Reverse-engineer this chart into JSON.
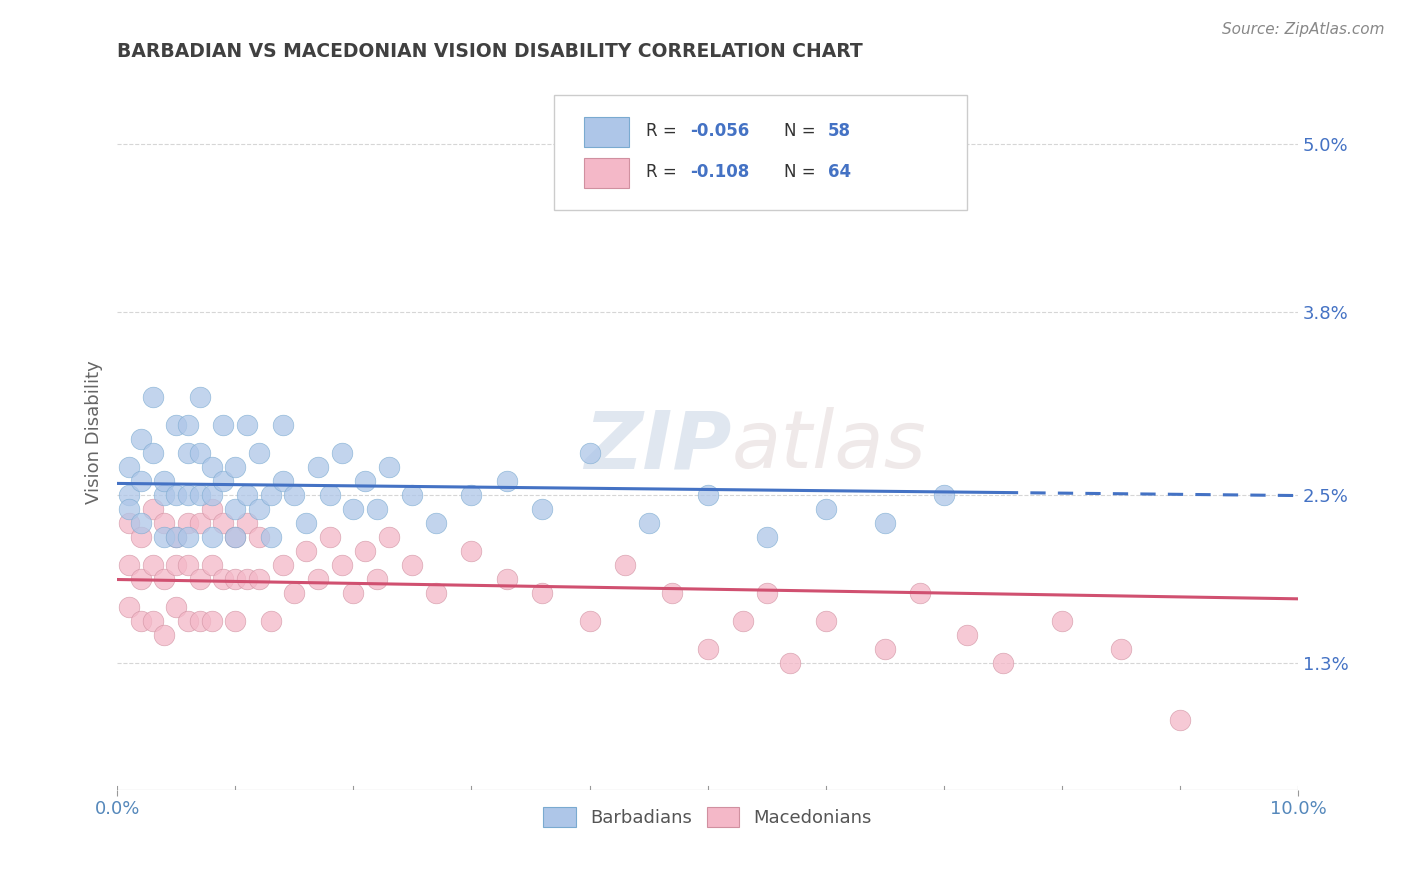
{
  "title": "BARBADIAN VS MACEDONIAN VISION DISABILITY CORRELATION CHART",
  "source": "Source: ZipAtlas.com",
  "ylabel": "Vision Disability",
  "x_min": 0.0,
  "x_max": 0.1,
  "y_min": 0.004,
  "y_max": 0.055,
  "x_tick_labels": [
    "0.0%",
    "10.0%"
  ],
  "y_ticks_right": [
    0.013,
    0.025,
    0.038,
    0.05
  ],
  "y_tick_labels_right": [
    "1.3%",
    "2.5%",
    "3.8%",
    "5.0%"
  ],
  "r_barbadian": -0.056,
  "n_barbadian": 58,
  "r_macedonian": -0.108,
  "n_macedonian": 64,
  "blue_scatter_color": "#aec6e8",
  "pink_scatter_color": "#f4b8c8",
  "blue_line_color": "#4472c4",
  "pink_line_color": "#d05070",
  "blue_edge_color": "#7aaad0",
  "pink_edge_color": "#d090a0",
  "watermark_color": "#d8dde8",
  "background_color": "#ffffff",
  "grid_color": "#cccccc",
  "title_color": "#404040",
  "legend_text_color": "#4472c4",
  "barbadian_x": [
    0.001,
    0.001,
    0.001,
    0.002,
    0.002,
    0.002,
    0.003,
    0.003,
    0.004,
    0.004,
    0.004,
    0.005,
    0.005,
    0.005,
    0.006,
    0.006,
    0.006,
    0.006,
    0.007,
    0.007,
    0.007,
    0.008,
    0.008,
    0.008,
    0.009,
    0.009,
    0.01,
    0.01,
    0.01,
    0.011,
    0.011,
    0.012,
    0.012,
    0.013,
    0.013,
    0.014,
    0.014,
    0.015,
    0.016,
    0.017,
    0.018,
    0.019,
    0.02,
    0.021,
    0.022,
    0.023,
    0.025,
    0.027,
    0.03,
    0.033,
    0.036,
    0.04,
    0.045,
    0.05,
    0.055,
    0.06,
    0.065,
    0.07
  ],
  "barbadian_y": [
    0.025,
    0.027,
    0.024,
    0.026,
    0.023,
    0.029,
    0.028,
    0.032,
    0.025,
    0.022,
    0.026,
    0.025,
    0.03,
    0.022,
    0.025,
    0.028,
    0.022,
    0.03,
    0.025,
    0.028,
    0.032,
    0.025,
    0.022,
    0.027,
    0.026,
    0.03,
    0.024,
    0.027,
    0.022,
    0.025,
    0.03,
    0.024,
    0.028,
    0.025,
    0.022,
    0.026,
    0.03,
    0.025,
    0.023,
    0.027,
    0.025,
    0.028,
    0.024,
    0.026,
    0.024,
    0.027,
    0.025,
    0.023,
    0.025,
    0.026,
    0.024,
    0.028,
    0.023,
    0.025,
    0.022,
    0.024,
    0.023,
    0.025
  ],
  "macedonian_x": [
    0.001,
    0.001,
    0.001,
    0.002,
    0.002,
    0.002,
    0.003,
    0.003,
    0.003,
    0.004,
    0.004,
    0.004,
    0.005,
    0.005,
    0.005,
    0.006,
    0.006,
    0.006,
    0.007,
    0.007,
    0.007,
    0.008,
    0.008,
    0.008,
    0.009,
    0.009,
    0.01,
    0.01,
    0.01,
    0.011,
    0.011,
    0.012,
    0.012,
    0.013,
    0.014,
    0.015,
    0.016,
    0.017,
    0.018,
    0.019,
    0.02,
    0.021,
    0.022,
    0.023,
    0.025,
    0.027,
    0.03,
    0.033,
    0.036,
    0.04,
    0.043,
    0.047,
    0.05,
    0.053,
    0.055,
    0.057,
    0.06,
    0.065,
    0.068,
    0.072,
    0.075,
    0.08,
    0.085,
    0.09
  ],
  "macedonian_y": [
    0.023,
    0.02,
    0.017,
    0.022,
    0.019,
    0.016,
    0.024,
    0.02,
    0.016,
    0.023,
    0.019,
    0.015,
    0.022,
    0.02,
    0.017,
    0.023,
    0.02,
    0.016,
    0.023,
    0.019,
    0.016,
    0.024,
    0.02,
    0.016,
    0.023,
    0.019,
    0.022,
    0.019,
    0.016,
    0.023,
    0.019,
    0.022,
    0.019,
    0.016,
    0.02,
    0.018,
    0.021,
    0.019,
    0.022,
    0.02,
    0.018,
    0.021,
    0.019,
    0.022,
    0.02,
    0.018,
    0.021,
    0.019,
    0.018,
    0.016,
    0.02,
    0.018,
    0.014,
    0.016,
    0.018,
    0.013,
    0.016,
    0.014,
    0.018,
    0.015,
    0.013,
    0.016,
    0.014,
    0.009
  ]
}
